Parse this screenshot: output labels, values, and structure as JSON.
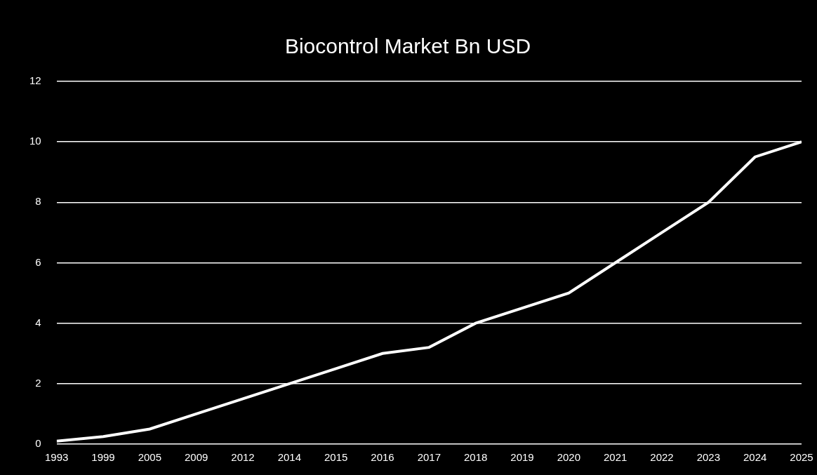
{
  "chart_data": {
    "type": "line",
    "title": "Biocontrol Market Bn USD",
    "categories": [
      "1993",
      "1999",
      "2005",
      "2009",
      "2012",
      "2014",
      "2015",
      "2016",
      "2017",
      "2018",
      "2019",
      "2020",
      "2021",
      "2022",
      "2023",
      "2024",
      "2025"
    ],
    "values": [
      0.1,
      0.25,
      0.5,
      1.0,
      1.5,
      2.0,
      2.5,
      3.0,
      3.2,
      4.0,
      4.5,
      5.0,
      6.0,
      7.0,
      8.0,
      9.5,
      10.0
    ],
    "color": "#ffffff",
    "ylim": [
      0,
      12
    ],
    "yticks": [
      0,
      2,
      4,
      6,
      8,
      10,
      12
    ],
    "grid": true
  }
}
